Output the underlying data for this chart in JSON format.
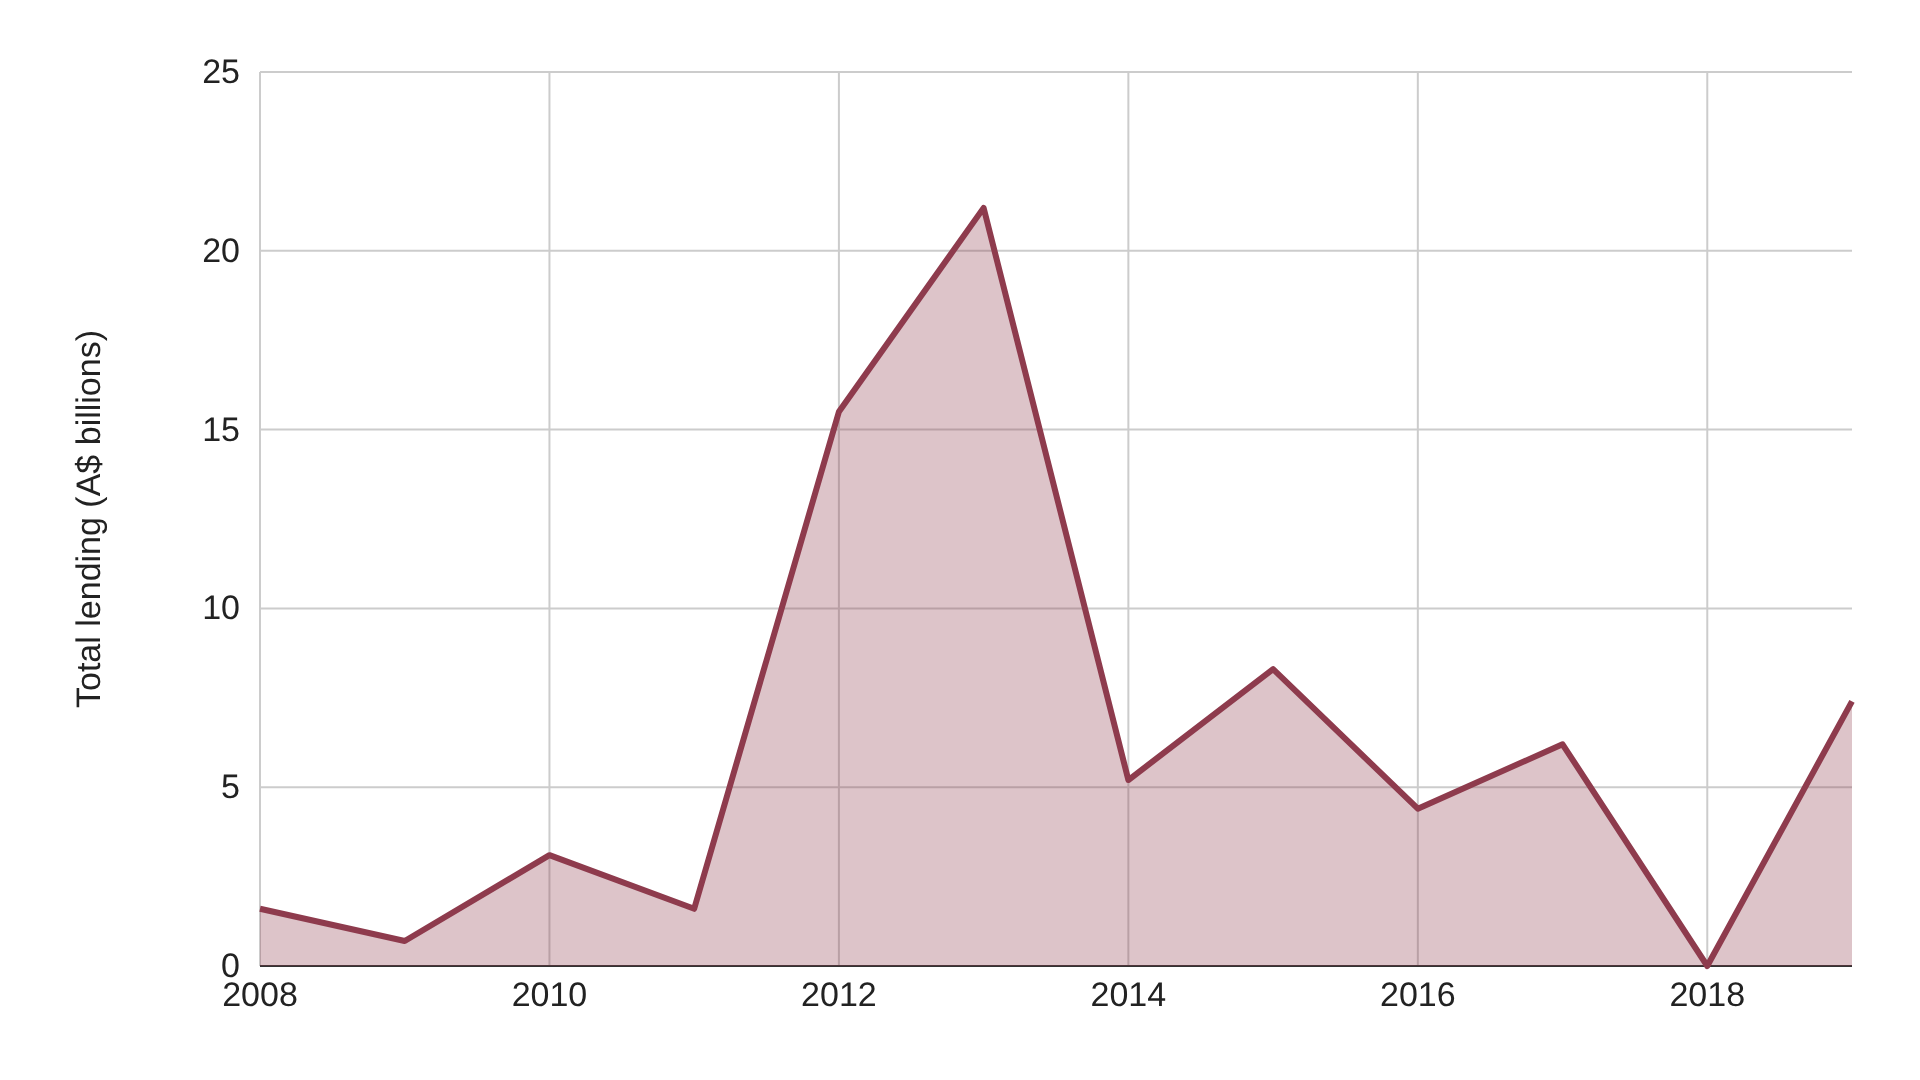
{
  "chart_data": {
    "type": "area",
    "ylabel": "Total lending (A$ billions)",
    "x": [
      2008,
      2009,
      2010,
      2011,
      2012,
      2013,
      2014,
      2015,
      2016,
      2017,
      2018,
      2019
    ],
    "series": [
      {
        "color": "#8e3b4d",
        "values": [
          1.6,
          0.7,
          3.1,
          1.6,
          15.5,
          21.2,
          5.2,
          8.3,
          4.4,
          6.2,
          0,
          7.4
        ]
      }
    ],
    "xlim": [
      2008,
      2019
    ],
    "xticks": [
      2008,
      2010,
      2012,
      2014,
      2016,
      2018
    ],
    "ylim": [
      0,
      25
    ],
    "yticks": [
      0,
      5,
      10,
      15,
      20,
      25
    ],
    "grid": true
  }
}
